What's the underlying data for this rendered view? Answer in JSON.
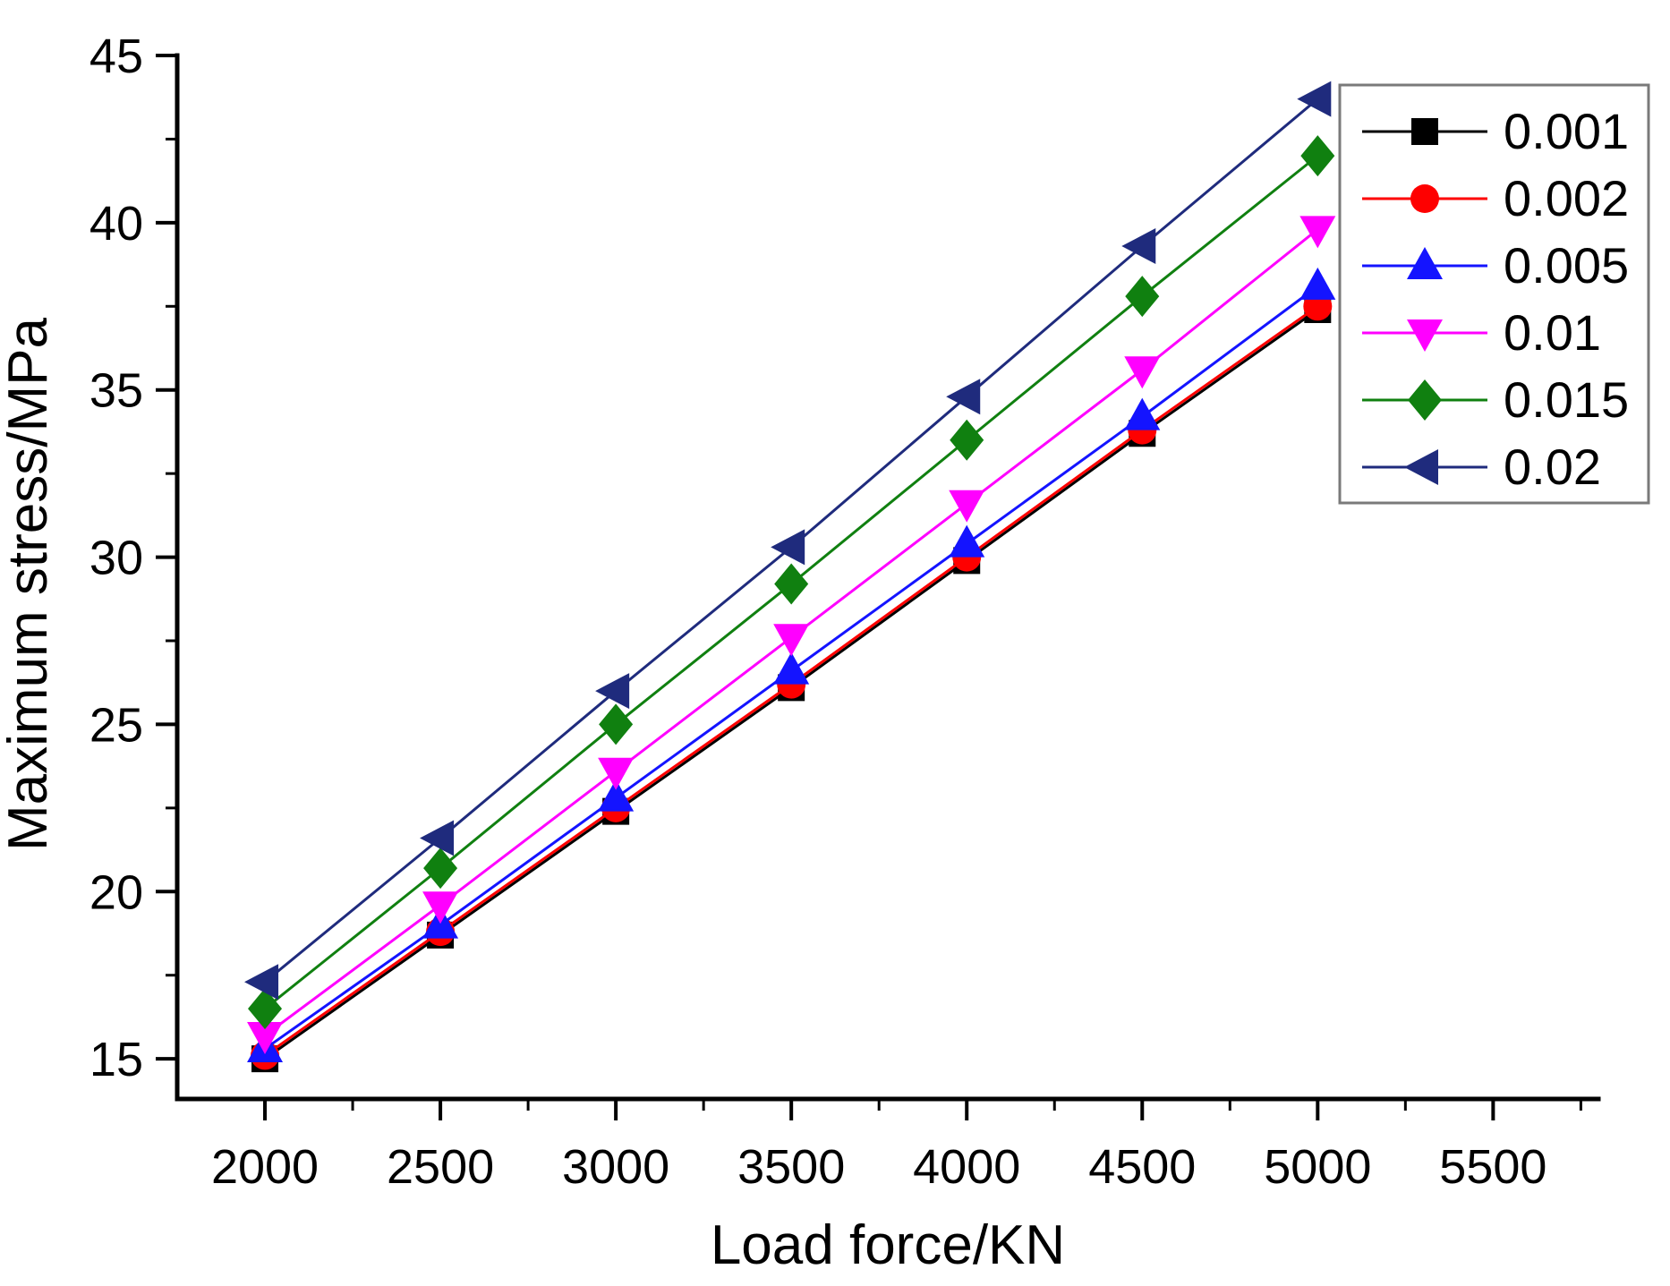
{
  "chart_data": {
    "type": "line",
    "title": "",
    "xlabel": "Load force/KN",
    "ylabel": "Maximum stress/MPa",
    "x": [
      2000,
      2500,
      3000,
      3500,
      4000,
      4500,
      5000
    ],
    "series": [
      {
        "name": "0.001",
        "color": "#000000",
        "marker": "square",
        "values": [
          15.0,
          18.7,
          22.4,
          26.1,
          29.9,
          33.7,
          37.4
        ]
      },
      {
        "name": "0.002",
        "color": "#fe0000",
        "marker": "circle",
        "values": [
          15.1,
          18.8,
          22.5,
          26.2,
          30.0,
          33.8,
          37.5
        ]
      },
      {
        "name": "0.005",
        "color": "#1414ff",
        "marker": "triangle-up",
        "values": [
          15.3,
          19.0,
          22.8,
          26.6,
          30.4,
          34.2,
          38.1
        ]
      },
      {
        "name": "0.01",
        "color": "#ff00ff",
        "marker": "triangle-down",
        "values": [
          15.7,
          19.6,
          23.6,
          27.6,
          31.6,
          35.6,
          39.8
        ]
      },
      {
        "name": "0.015",
        "color": "#108010",
        "marker": "diamond",
        "values": [
          16.5,
          20.7,
          25.0,
          29.2,
          33.5,
          37.8,
          42.0
        ]
      },
      {
        "name": "0.02",
        "color": "#1f2b7d",
        "marker": "triangle-left",
        "values": [
          17.3,
          21.6,
          26.0,
          30.3,
          34.8,
          39.3,
          43.7
        ]
      }
    ],
    "x_major_ticks": [
      2000,
      2500,
      3000,
      3500,
      4000,
      4500,
      5000,
      5500
    ],
    "y_major_ticks": [
      15,
      20,
      25,
      30,
      35,
      40,
      45
    ],
    "x_minor_step": 250,
    "y_minor_step": 2.5,
    "xlim": [
      1750,
      5800
    ],
    "ylim": [
      13.8,
      45.0
    ],
    "grid": false,
    "legend_position": "top-right",
    "axis_color": "#000000",
    "legend_border_color": "#7a7a7a",
    "background": "#ffffff"
  }
}
